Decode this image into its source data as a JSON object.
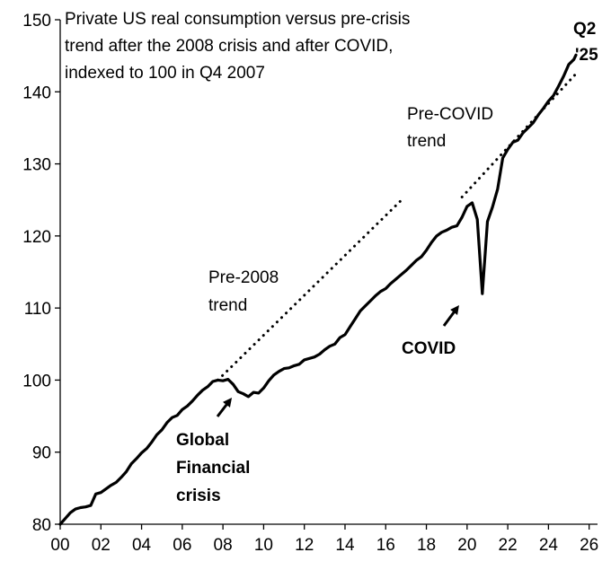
{
  "chart_data": {
    "type": "line",
    "title_lines": [
      "Private US real consumption versus pre-crisis",
      "trend after the 2008 crisis and after COVID,",
      "indexed to 100 in Q4 2007"
    ],
    "xlabel": "",
    "ylabel": "",
    "xlim": [
      2000,
      2026.5
    ],
    "ylim": [
      80,
      150
    ],
    "x_ticks": [
      2000,
      2002,
      2004,
      2006,
      2008,
      2010,
      2012,
      2014,
      2016,
      2018,
      2020,
      2022,
      2024,
      2026
    ],
    "x_tick_labels": [
      "00",
      "02",
      "04",
      "06",
      "08",
      "10",
      "12",
      "14",
      "16",
      "18",
      "20",
      "22",
      "24",
      "26"
    ],
    "y_ticks": [
      80,
      90,
      100,
      110,
      120,
      130,
      140,
      150
    ],
    "y_tick_labels": [
      "80",
      "90",
      "100",
      "110",
      "120",
      "130",
      "140",
      "150"
    ],
    "grid": false,
    "series": [
      {
        "name": "Private US real consumption",
        "style": "solid",
        "x": [
          2000.0,
          2000.25,
          2000.5,
          2000.75,
          2001.0,
          2001.25,
          2001.5,
          2001.75,
          2002.0,
          2002.25,
          2002.5,
          2002.75,
          2003.0,
          2003.25,
          2003.5,
          2003.75,
          2004.0,
          2004.25,
          2004.5,
          2004.75,
          2005.0,
          2005.25,
          2005.5,
          2005.75,
          2006.0,
          2006.25,
          2006.5,
          2006.75,
          2007.0,
          2007.25,
          2007.5,
          2007.75,
          2008.0,
          2008.25,
          2008.5,
          2008.75,
          2009.0,
          2009.25,
          2009.5,
          2009.75,
          2010.0,
          2010.25,
          2010.5,
          2010.75,
          2011.0,
          2011.25,
          2011.5,
          2011.75,
          2012.0,
          2012.25,
          2012.5,
          2012.75,
          2013.0,
          2013.25,
          2013.5,
          2013.75,
          2014.0,
          2014.25,
          2014.5,
          2014.75,
          2015.0,
          2015.25,
          2015.5,
          2015.75,
          2016.0,
          2016.25,
          2016.5,
          2016.75,
          2017.0,
          2017.25,
          2017.5,
          2017.75,
          2018.0,
          2018.25,
          2018.5,
          2018.75,
          2019.0,
          2019.25,
          2019.5,
          2019.75,
          2020.0,
          2020.25,
          2020.5,
          2020.75,
          2021.0,
          2021.25,
          2021.5,
          2021.75,
          2022.0,
          2022.25,
          2022.5,
          2022.75,
          2023.0,
          2023.25,
          2023.5,
          2023.75,
          2024.0,
          2024.25,
          2024.5,
          2024.75,
          2025.0,
          2025.25
        ],
        "y": [
          80.0,
          80.8,
          81.6,
          82.1,
          82.3,
          82.4,
          82.6,
          84.2,
          84.4,
          84.9,
          85.4,
          85.8,
          86.5,
          87.3,
          88.4,
          89.1,
          89.9,
          90.5,
          91.4,
          92.4,
          93.1,
          94.1,
          94.8,
          95.1,
          95.9,
          96.4,
          97.1,
          97.9,
          98.6,
          99.1,
          99.8,
          100.0,
          99.9,
          100.1,
          99.4,
          98.4,
          98.1,
          97.7,
          98.3,
          98.2,
          98.9,
          99.9,
          100.7,
          101.2,
          101.6,
          101.7,
          102.0,
          102.2,
          102.8,
          103.0,
          103.2,
          103.6,
          104.2,
          104.7,
          105.0,
          105.9,
          106.3,
          107.4,
          108.5,
          109.6,
          110.3,
          111.0,
          111.7,
          112.3,
          112.7,
          113.4,
          114.0,
          114.6,
          115.2,
          115.9,
          116.6,
          117.1,
          118.0,
          119.1,
          120.0,
          120.5,
          120.8,
          121.2,
          121.4,
          122.6,
          124.1,
          124.6,
          122.3,
          112.0,
          122.0,
          124.0,
          126.5,
          130.8,
          132.0,
          133.0,
          133.3,
          134.3,
          135.0,
          135.7,
          136.8,
          137.7,
          138.7,
          139.5,
          140.8,
          142.2,
          143.8,
          144.5
        ],
        "end_x": 2025.35,
        "end_y": 145.1
      },
      {
        "name": "Pre-2008 trend",
        "style": "dotted",
        "x": [
          2007.75,
          2016.75
        ],
        "y": [
          100.0,
          124.9
        ]
      },
      {
        "name": "Pre-COVID trend",
        "style": "dotted",
        "x": [
          2019.75,
          2025.35
        ],
        "y": [
          125.4,
          142.5
        ]
      }
    ],
    "annotations": {
      "end_label_1": "Q2",
      "end_label_2": "'25",
      "precovid_1": "Pre-COVID",
      "precovid_2": "trend",
      "pre2008_1": "Pre-2008",
      "pre2008_2": "trend",
      "covid": "COVID",
      "gfc_1": "Global",
      "gfc_2": "Financial",
      "gfc_3": "crisis"
    }
  }
}
